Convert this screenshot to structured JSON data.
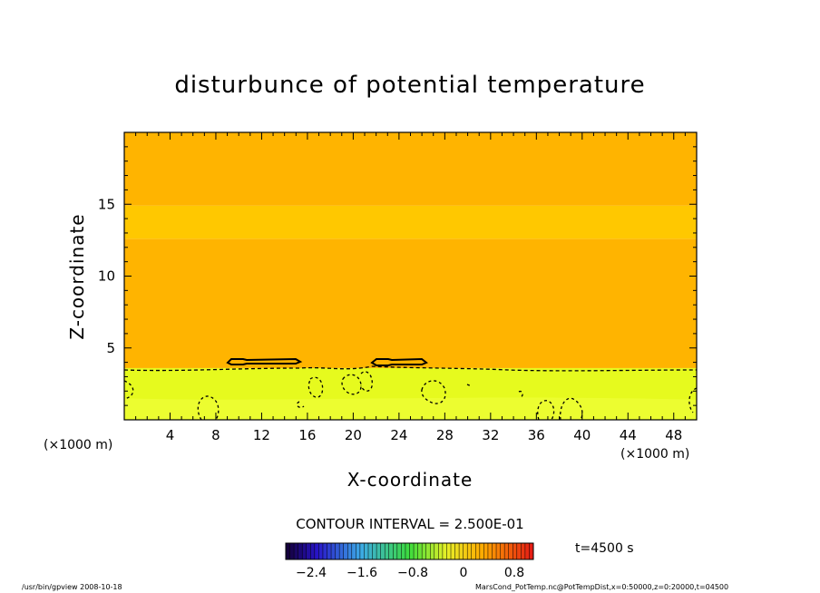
{
  "chart_data": {
    "type": "heatmap",
    "title": "disturbunce of potential temperature",
    "xlabel": "X-coordinate",
    "ylabel": "Z-coordinate",
    "x_unit_left": "(×1000 m)",
    "x_unit_right": "(×1000 m)",
    "xlim": [
      0,
      50
    ],
    "ylim": [
      0,
      20
    ],
    "xticks": [
      "4",
      "8",
      "12",
      "16",
      "20",
      "24",
      "28",
      "32",
      "36",
      "40",
      "44",
      "48"
    ],
    "yticks": [
      "5",
      "10",
      "15"
    ],
    "contour_interval_text": "CONTOUR INTERVAL = 2.500E-01",
    "time_text": "t=4500 s",
    "colorbar": {
      "min": -2.8,
      "max": 1.1,
      "tick_labels": [
        "−2.4",
        "−1.6",
        "−0.8",
        "0",
        "0.8"
      ],
      "tick_values": [
        -2.4,
        -1.6,
        -0.8,
        0,
        0.8
      ]
    },
    "bands": [
      {
        "z0": 0,
        "z1": 3.6,
        "color": "#e6fa1e"
      },
      {
        "z0": 3.6,
        "z1": 12.6,
        "color": "#ffb400"
      },
      {
        "z0": 12.6,
        "z1": 14.9,
        "color": "#ffc800"
      },
      {
        "z0": 14.9,
        "z1": 20,
        "color": "#ffb400"
      }
    ],
    "footer_left": "/usr/bin/gpview  2008-10-18",
    "footer_right": "MarsCond_PotTemp.nc@PotTempDist,x=0:50000,z=0:20000,t=04500"
  }
}
